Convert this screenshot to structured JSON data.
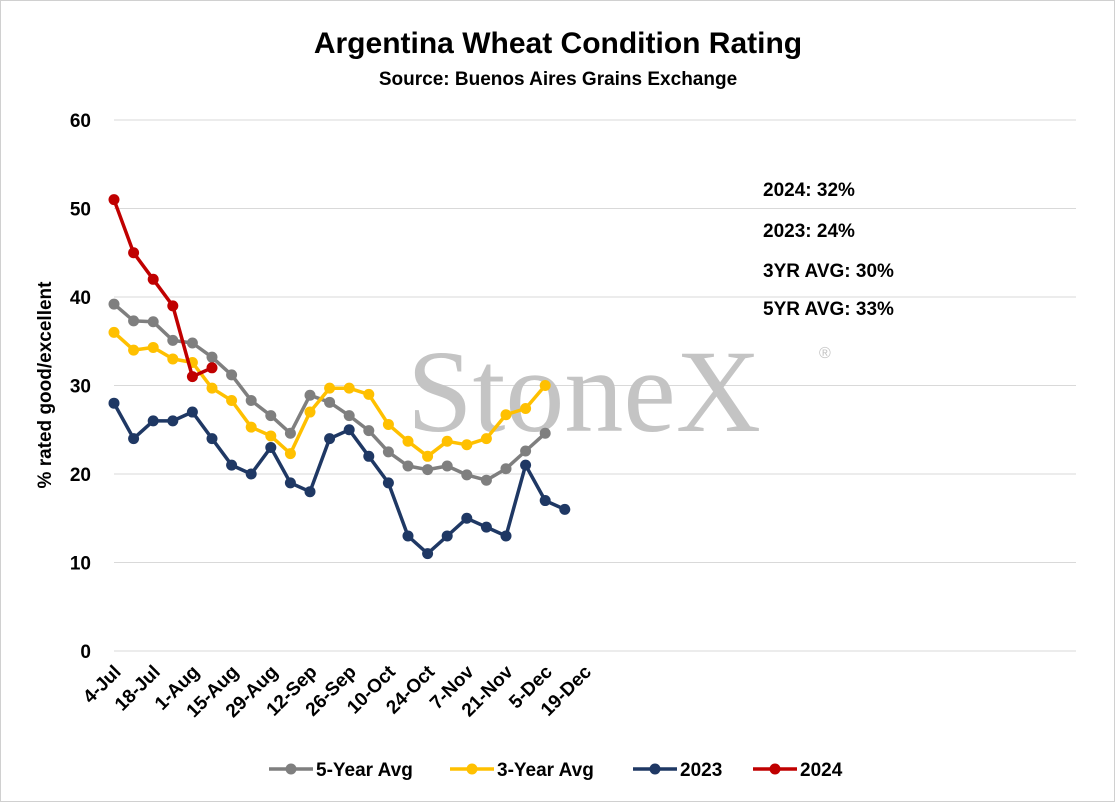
{
  "chart_data": {
    "type": "line",
    "title": "Argentina Wheat Condition Rating",
    "subtitle": "Source: Buenos Aires Grains Exchange",
    "ylabel": "% rated good/excellent",
    "xlabel": "",
    "ylim": [
      0,
      60
    ],
    "yticks": [
      0,
      10,
      20,
      30,
      40,
      50,
      60
    ],
    "grid": true,
    "legend_position": "bottom",
    "x_tick_labels": [
      "4-Jul",
      "18-Jul",
      "1-Aug",
      "15-Aug",
      "29-Aug",
      "12-Sep",
      "26-Sep",
      "10-Oct",
      "24-Oct",
      "7-Nov",
      "21-Nov",
      "5-Dec",
      "19-Dec"
    ],
    "x_dates": [
      "4-Jul",
      "11-Jul",
      "18-Jul",
      "25-Jul",
      "1-Aug",
      "8-Aug",
      "15-Aug",
      "22-Aug",
      "29-Aug",
      "5-Sep",
      "12-Sep",
      "19-Sep",
      "26-Sep",
      "3-Oct",
      "10-Oct",
      "17-Oct",
      "24-Oct",
      "31-Oct",
      "7-Nov",
      "14-Nov",
      "21-Nov",
      "28-Nov",
      "5-Dec",
      "12-Dec",
      "19-Dec"
    ],
    "series": [
      {
        "name": "5-Year Avg",
        "color": "#7f7f7f",
        "values": [
          39.2,
          37.3,
          37.2,
          35.1,
          34.8,
          33.2,
          31.2,
          28.3,
          26.6,
          24.6,
          28.9,
          28.1,
          26.6,
          24.9,
          22.5,
          20.9,
          20.5,
          20.9,
          19.9,
          19.3,
          20.6,
          22.6,
          24.6
        ]
      },
      {
        "name": "3-Year Avg",
        "color": "#ffc000",
        "values": [
          36.0,
          34.0,
          34.3,
          33.0,
          32.6,
          29.7,
          28.3,
          25.3,
          24.3,
          22.3,
          27.0,
          29.7,
          29.7,
          29.0,
          25.6,
          23.7,
          22.0,
          23.7,
          23.3,
          24.0,
          26.7,
          27.4,
          30.0
        ]
      },
      {
        "name": "2023",
        "color": "#1f3864",
        "values": [
          28,
          24,
          26,
          26,
          27,
          24,
          21,
          20,
          23,
          19,
          18,
          24,
          25,
          22,
          19,
          13,
          11,
          13,
          15,
          14,
          13,
          21,
          17,
          16
        ]
      },
      {
        "name": "2024",
        "color": "#c00000",
        "values": [
          51,
          45,
          42,
          39,
          31,
          32
        ]
      }
    ],
    "annotations": [
      "2024: 32%",
      "2023: 24%",
      "3YR AVG: 30%",
      "5YR AVG: 33%"
    ],
    "watermark": "StoneX"
  }
}
